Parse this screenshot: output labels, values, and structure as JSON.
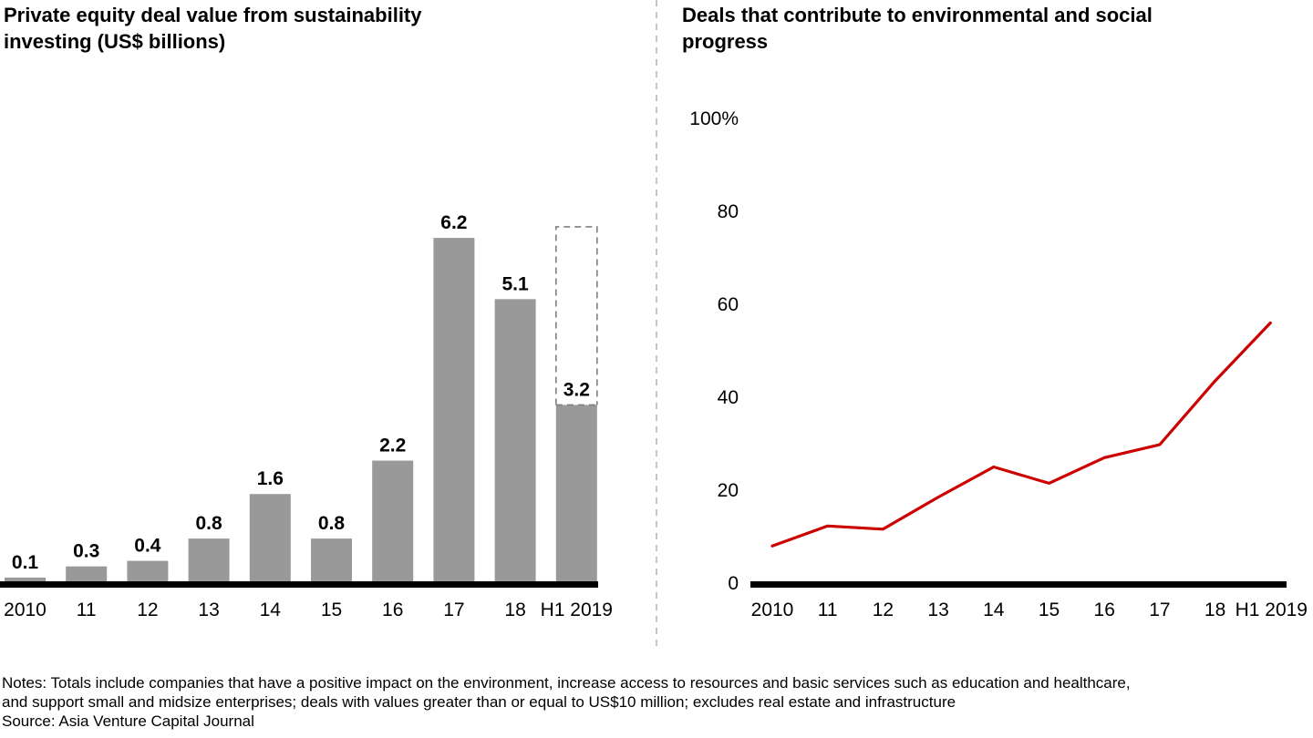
{
  "colors": {
    "bar": "#999999",
    "line": "#cc0000",
    "axis": "#000000",
    "divider": "#b3b3b3",
    "projection_outline": "#7f7f7f"
  },
  "chart_data": [
    {
      "type": "bar",
      "title": "Private equity deal value from sustainability investing (US$ billions)",
      "categories": [
        "2010",
        "11",
        "12",
        "13",
        "14",
        "15",
        "16",
        "17",
        "18",
        "H1 2019"
      ],
      "values": [
        0.1,
        0.3,
        0.4,
        0.8,
        1.6,
        0.8,
        2.2,
        6.2,
        5.1,
        3.2
      ],
      "data_labels": [
        "0.1",
        "0.3",
        "0.4",
        "0.8",
        "1.6",
        "0.8",
        "2.2",
        "6.2",
        "5.1",
        "3.2"
      ],
      "projected_outline": {
        "category": "H1 2019",
        "value": 6.4,
        "style": "dashed"
      },
      "ylim": [
        0,
        7.2
      ],
      "yaxis_visible": false,
      "grid": false,
      "legend": "none"
    },
    {
      "type": "line",
      "title": "Deals that contribute to environmental and social progress",
      "categories": [
        "2010",
        "11",
        "12",
        "13",
        "14",
        "15",
        "16",
        "17",
        "18",
        "H1 2019"
      ],
      "values": [
        8,
        12.3,
        11.6,
        18.5,
        25,
        21.5,
        27,
        29.8,
        43.5,
        56
      ],
      "yticks": [
        "0",
        "20",
        "40",
        "60",
        "80",
        "100%"
      ],
      "ylim": [
        0,
        100
      ],
      "grid": false,
      "legend": "none"
    }
  ],
  "notes": {
    "line1": "Notes: Totals include companies that have a positive impact on the environment, increase access to resources and basic services such as education and healthcare,",
    "line2": "and support small and midsize enterprises; deals with values greater than or equal to US$10 million; excludes real estate and infrastructure",
    "source": "Source: Asia Venture Capital Journal"
  }
}
